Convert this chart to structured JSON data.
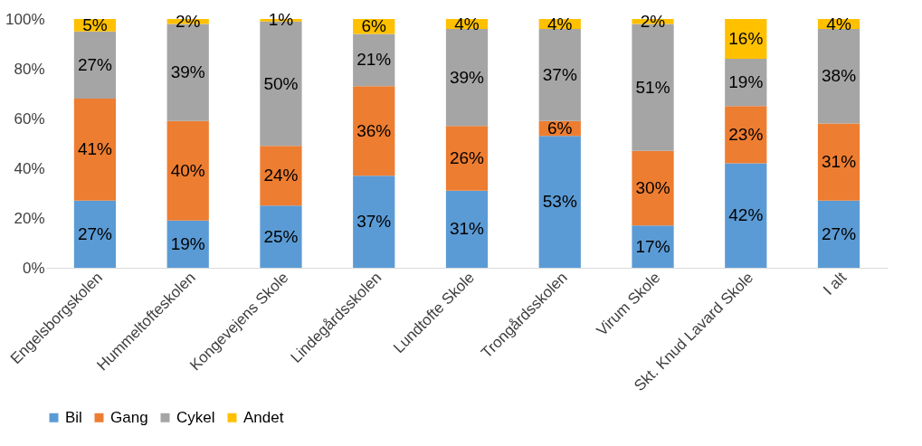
{
  "chart_data": {
    "type": "bar",
    "stacked": true,
    "grid": false,
    "legend": "bottom",
    "categories": [
      "Engelsborgskolen",
      "Hummeltofteskolen",
      "Kongevejens Skole",
      "Lindegårdsskolen",
      "Lundtofte Skole",
      "Trongårdsskolen",
      "Virum Skole",
      "Skt. Knud Lavard Skole",
      "I alt"
    ],
    "series": [
      {
        "name": "Bil",
        "color": "#5b9bd5",
        "values": [
          27,
          19,
          25,
          37,
          31,
          53,
          17,
          42,
          27
        ],
        "value_labels": [
          "27%",
          "19%",
          "25%",
          "37%",
          "31%",
          "53%",
          "17%",
          "42%",
          "27%"
        ]
      },
      {
        "name": "Gang",
        "color": "#ed7d31",
        "values": [
          41,
          40,
          24,
          36,
          26,
          6,
          30,
          23,
          31
        ],
        "value_labels": [
          "41%",
          "40%",
          "24%",
          "36%",
          "26%",
          "6%",
          "30%",
          "23%",
          "31%"
        ]
      },
      {
        "name": "Cykel",
        "color": "#a5a5a5",
        "values": [
          27,
          39,
          50,
          21,
          39,
          37,
          51,
          19,
          38
        ],
        "value_labels": [
          "27%",
          "39%",
          "50%",
          "21%",
          "39%",
          "37%",
          "51%",
          "19%",
          "38%"
        ]
      },
      {
        "name": "Andet",
        "color": "#ffc000",
        "values": [
          5,
          2,
          1,
          6,
          4,
          4,
          2,
          16,
          4
        ],
        "value_labels": [
          "5%",
          "2%",
          "1%",
          "6%",
          "4%",
          "4%",
          "2%",
          "16%",
          "4%"
        ]
      }
    ],
    "ylim": [
      0,
      100
    ],
    "yticks": [
      {
        "value": 0,
        "label": "0%"
      },
      {
        "value": 20,
        "label": "20%"
      },
      {
        "value": 40,
        "label": "40%"
      },
      {
        "value": 60,
        "label": "60%"
      },
      {
        "value": 80,
        "label": "80%"
      },
      {
        "value": 100,
        "label": "100%"
      }
    ]
  }
}
